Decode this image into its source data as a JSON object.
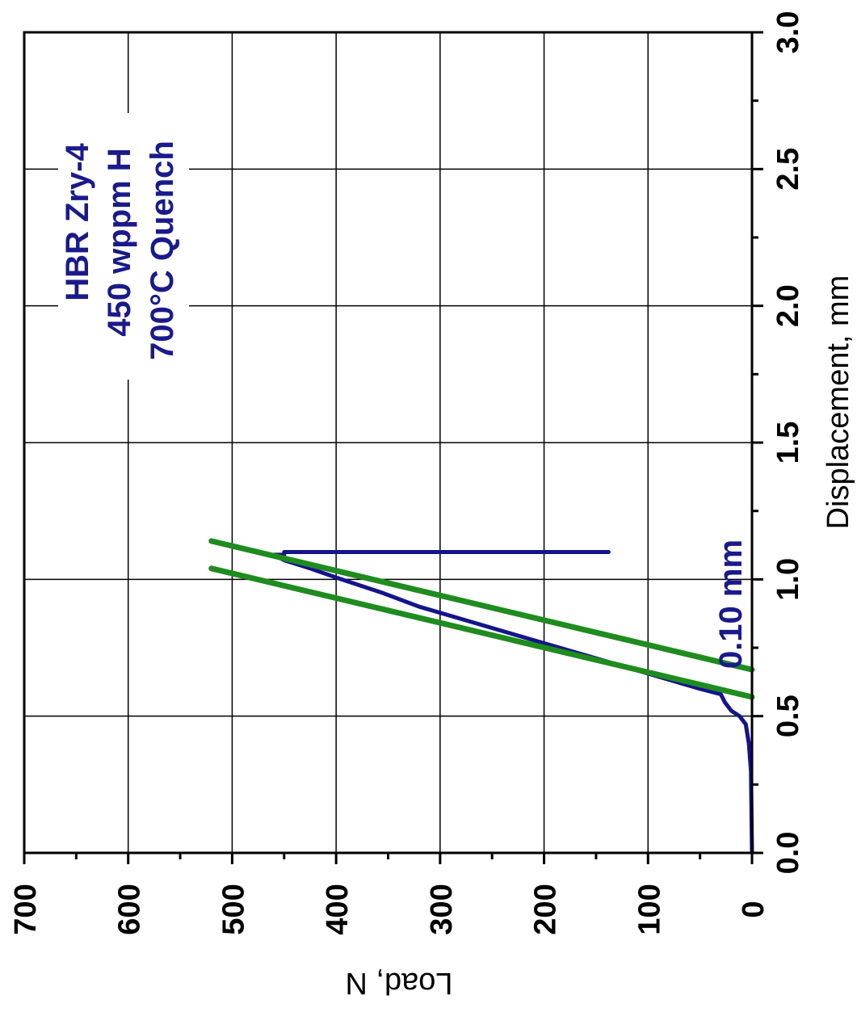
{
  "chart_data": {
    "type": "line",
    "xlabel": "Displacement, mm",
    "ylabel": "Load, N",
    "xlim": [
      0,
      3.0
    ],
    "ylim": [
      0,
      700
    ],
    "x_ticks": [
      "0.0",
      "0.5",
      "1.0",
      "1.5",
      "2.0",
      "2.5",
      "3.0"
    ],
    "y_ticks": [
      "0",
      "100",
      "200",
      "300",
      "400",
      "500",
      "600",
      "700"
    ],
    "grid": true,
    "orientation": "rotated-90",
    "annotations": [
      {
        "id": "sample",
        "lines": [
          "HBR Zry-4",
          "450 wppm H",
          "700°C Quench"
        ],
        "color": "#1a1a8c"
      },
      {
        "id": "offset",
        "text": "0.10 mm",
        "color": "#1a1a8c"
      }
    ],
    "series": [
      {
        "color": "#14148c",
        "x": [
          0.0,
          0.3,
          0.4,
          0.47,
          0.5,
          0.52,
          0.55,
          0.58,
          0.6,
          0.65,
          0.7,
          0.75,
          0.8,
          0.85,
          0.9,
          0.95,
          1.0,
          1.04,
          1.07,
          1.09,
          1.09,
          1.1,
          1.1
        ],
        "y": [
          0,
          1,
          3,
          6,
          12,
          20,
          26,
          30,
          50,
          95,
          140,
          185,
          230,
          275,
          320,
          355,
          395,
          425,
          450,
          460,
          450,
          450,
          138
        ]
      },
      {
        "color": "#1e8c1e",
        "x": [
          0.57,
          1.04
        ],
        "y": [
          0,
          520
        ]
      },
      {
        "color": "#1e8c1e",
        "x": [
          0.67,
          1.14
        ],
        "y": [
          0,
          520
        ]
      }
    ]
  }
}
